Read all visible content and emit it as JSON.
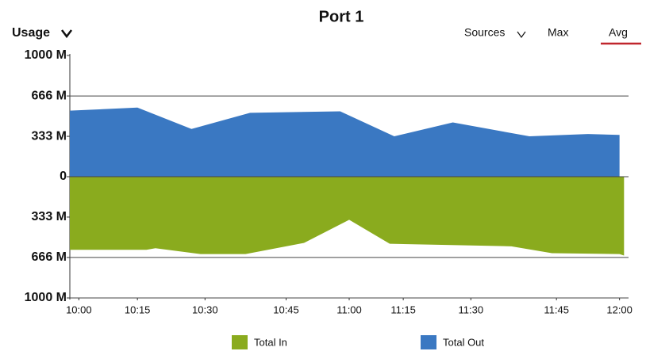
{
  "chart_data": {
    "type": "mirrored-area",
    "title": "Port 1",
    "controls": {
      "usage": "Usage",
      "sources": "Sources",
      "max": "Max",
      "avg": "Avg"
    },
    "ylim": [
      -1000,
      1000
    ],
    "yticks": [
      {
        "value": 1000,
        "label": "1000 M"
      },
      {
        "value": 666,
        "label": "666 M"
      },
      {
        "value": 333,
        "label": "333 M"
      },
      0,
      {
        "value": -333,
        "label": "333 M"
      },
      {
        "value": -666,
        "label": "666 M"
      },
      {
        "value": -1000,
        "label": "1000 M"
      }
    ],
    "grid": [
      666,
      0,
      -666,
      -1000
    ],
    "xlim": [
      "09:58",
      "12:02"
    ],
    "xticks": [
      "10:00",
      "10:15",
      "10:30",
      "10:45",
      "11:00",
      "11:15",
      "11:30",
      "11:45",
      "12:00"
    ],
    "xtick_positions": [
      "10:00",
      "10:13",
      "10:28",
      "10:46",
      "11:00",
      "11:12",
      "11:27",
      "11:46",
      "12:00"
    ],
    "series": [
      {
        "name": "Total In",
        "color": "#8aab1e",
        "x": [
          "09:58",
          "10:15",
          "10:17",
          "10:27",
          "10:37",
          "10:50",
          "11:00",
          "11:09",
          "11:36",
          "11:45",
          "12:00",
          "12:01"
        ],
        "values": [
          -603,
          -603,
          -590,
          -638,
          -638,
          -546,
          -355,
          -553,
          -574,
          -631,
          -638,
          -650
        ]
      },
      {
        "name": "Total Out",
        "color": "#3a78c2",
        "x": [
          "09:58",
          "10:13",
          "10:25",
          "10:38",
          "10:58",
          "11:10",
          "11:23",
          "11:40",
          "11:53",
          "12:00"
        ],
        "values": [
          545,
          570,
          394,
          527,
          539,
          333,
          448,
          333,
          352,
          345
        ]
      }
    ]
  }
}
